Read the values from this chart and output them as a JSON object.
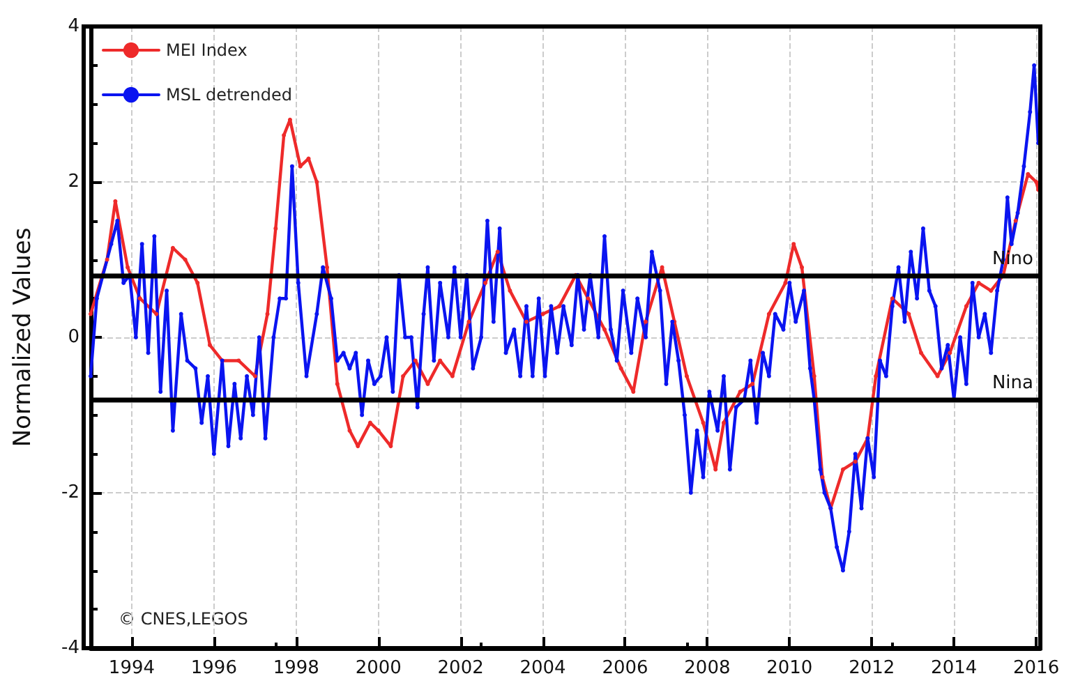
{
  "chart_data": {
    "type": "line",
    "ylabel": "Normalized Values",
    "xlim": [
      1993,
      2016.1
    ],
    "xticks": [
      1994,
      1996,
      1998,
      2000,
      2002,
      2004,
      2006,
      2008,
      2010,
      2012,
      2014,
      2016
    ],
    "ylim": [
      -4,
      4
    ],
    "yticks": [
      -4,
      -2,
      0,
      2,
      4
    ],
    "grid": true,
    "legend": "top left",
    "marker": "circle",
    "line_style": "solid",
    "annotations": [
      "© CNES,LEGOS"
    ],
    "ref_lines": [
      {
        "axis": "y",
        "value": 0.8,
        "label": "Nino",
        "color": "#000000"
      },
      {
        "axis": "y",
        "value": -0.8,
        "label": "Nina",
        "color": "#000000"
      }
    ],
    "series": [
      {
        "name": "MEI Index",
        "color": "#ee2a2a",
        "x": [
          1993,
          1993.4,
          1993.6,
          1993.9,
          1994.2,
          1994.6,
          1995,
          1995.3,
          1995.6,
          1995.9,
          1996.2,
          1996.6,
          1997,
          1997.3,
          1997.5,
          1997.7,
          1997.85,
          1998.1,
          1998.3,
          1998.5,
          1998.75,
          1999,
          1999.3,
          1999.5,
          1999.8,
          2000,
          2000.3,
          2000.6,
          2000.9,
          2001.2,
          2001.5,
          2001.8,
          2002.2,
          2002.6,
          2002.9,
          2003.2,
          2003.6,
          2004,
          2004.4,
          2004.8,
          2005.1,
          2005.5,
          2005.9,
          2006.2,
          2006.5,
          2006.9,
          2007.2,
          2007.5,
          2007.9,
          2008.2,
          2008.4,
          2008.8,
          2009.1,
          2009.5,
          2009.9,
          2010.1,
          2010.3,
          2010.6,
          2010.8,
          2011,
          2011.3,
          2011.6,
          2011.9,
          2012.1,
          2012.5,
          2012.9,
          2013.2,
          2013.6,
          2013.9,
          2014.3,
          2014.6,
          2014.9,
          2015.2,
          2015.5,
          2015.8,
          2016,
          2016.05
        ],
        "values": [
          0.3,
          1,
          1.75,
          0.9,
          0.5,
          0.3,
          1.15,
          1,
          0.7,
          -0.1,
          -0.3,
          -0.3,
          -0.5,
          0.3,
          1.4,
          2.6,
          2.8,
          2.2,
          2.3,
          2,
          0.9,
          -0.6,
          -1.2,
          -1.4,
          -1.1,
          -1.2,
          -1.4,
          -0.5,
          -0.3,
          -0.6,
          -0.3,
          -0.5,
          0.2,
          0.7,
          1.1,
          0.6,
          0.2,
          0.3,
          0.4,
          0.8,
          0.5,
          0.1,
          -0.4,
          -0.7,
          0.2,
          0.9,
          0.2,
          -0.5,
          -1.1,
          -1.7,
          -1.1,
          -0.7,
          -0.6,
          0.3,
          0.7,
          1.2,
          0.9,
          -0.5,
          -1.8,
          -2.2,
          -1.7,
          -1.6,
          -1.3,
          -0.5,
          0.5,
          0.3,
          -0.2,
          -0.5,
          -0.2,
          0.4,
          0.7,
          0.6,
          0.8,
          1.5,
          2.1,
          2,
          1.9
        ]
      },
      {
        "name": "MSL detrended",
        "color": "#0a14f0",
        "x": [
          1993,
          1993.15,
          1993.3,
          1993.5,
          1993.65,
          1993.8,
          1993.95,
          1994.1,
          1994.25,
          1994.4,
          1994.55,
          1994.7,
          1994.85,
          1995,
          1995.2,
          1995.35,
          1995.55,
          1995.7,
          1995.85,
          1996,
          1996.2,
          1996.35,
          1996.5,
          1996.65,
          1996.8,
          1996.95,
          1997.1,
          1997.25,
          1997.45,
          1997.6,
          1997.75,
          1997.9,
          1998.05,
          1998.25,
          1998.5,
          1998.65,
          1998.85,
          1999,
          1999.15,
          1999.3,
          1999.45,
          1999.6,
          1999.75,
          1999.9,
          2000.05,
          2000.2,
          2000.35,
          2000.5,
          2000.65,
          2000.8,
          2000.95,
          2001.1,
          2001.2,
          2001.35,
          2001.5,
          2001.7,
          2001.85,
          2002,
          2002.15,
          2002.3,
          2002.5,
          2002.65,
          2002.8,
          2002.95,
          2003.1,
          2003.3,
          2003.45,
          2003.6,
          2003.75,
          2003.9,
          2004.05,
          2004.2,
          2004.35,
          2004.5,
          2004.7,
          2004.85,
          2005,
          2005.15,
          2005.35,
          2005.5,
          2005.65,
          2005.8,
          2005.95,
          2006.15,
          2006.3,
          2006.5,
          2006.65,
          2006.85,
          2007,
          2007.15,
          2007.3,
          2007.45,
          2007.6,
          2007.75,
          2007.9,
          2008.05,
          2008.25,
          2008.4,
          2008.55,
          2008.7,
          2008.9,
          2009.05,
          2009.2,
          2009.35,
          2009.5,
          2009.65,
          2009.85,
          2010,
          2010.15,
          2010.35,
          2010.5,
          2010.6,
          2010.75,
          2010.85,
          2011,
          2011.15,
          2011.3,
          2011.45,
          2011.6,
          2011.75,
          2011.9,
          2012.05,
          2012.2,
          2012.35,
          2012.5,
          2012.65,
          2012.8,
          2012.95,
          2013.1,
          2013.25,
          2013.4,
          2013.55,
          2013.7,
          2013.85,
          2014,
          2014.15,
          2014.3,
          2014.45,
          2014.6,
          2014.75,
          2014.9,
          2015.05,
          2015.2,
          2015.3,
          2015.4,
          2015.55,
          2015.7,
          2015.85,
          2015.95,
          2016.05
        ],
        "values": [
          -0.5,
          0.5,
          0.8,
          1.2,
          1.5,
          0.7,
          0.8,
          0,
          1.2,
          -0.2,
          1.3,
          -0.7,
          0.6,
          -1.2,
          0.3,
          -0.3,
          -0.4,
          -1.1,
          -0.5,
          -1.5,
          -0.3,
          -1.4,
          -0.6,
          -1.3,
          -0.5,
          -1,
          0,
          -1.3,
          0,
          0.5,
          0.5,
          2.2,
          0.7,
          -0.5,
          0.3,
          0.9,
          0.5,
          -0.3,
          -0.2,
          -0.4,
          -0.2,
          -1,
          -0.3,
          -0.6,
          -0.5,
          0,
          -0.7,
          0.8,
          0,
          0,
          -0.9,
          0.3,
          0.9,
          -0.3,
          0.7,
          0,
          0.9,
          0,
          0.8,
          -0.4,
          0,
          1.5,
          0.2,
          1.4,
          -0.2,
          0.1,
          -0.5,
          0.4,
          -0.5,
          0.5,
          -0.5,
          0.4,
          -0.2,
          0.4,
          -0.1,
          0.8,
          0.1,
          0.8,
          0,
          1.3,
          0.1,
          -0.3,
          0.6,
          -0.2,
          0.5,
          0,
          1.1,
          0.6,
          -0.6,
          0.2,
          -0.3,
          -1,
          -2,
          -1.2,
          -1.8,
          -0.7,
          -1.2,
          -0.5,
          -1.7,
          -0.9,
          -0.8,
          -0.3,
          -1.1,
          -0.2,
          -0.5,
          0.3,
          0.1,
          0.7,
          0.2,
          0.6,
          -0.4,
          -0.8,
          -1.7,
          -2,
          -2.2,
          -2.7,
          -3,
          -2.5,
          -1.5,
          -2.2,
          -1.3,
          -1.8,
          -0.3,
          -0.5,
          0.4,
          0.9,
          0.2,
          1.1,
          0.5,
          1.4,
          0.6,
          0.4,
          -0.4,
          -0.1,
          -0.8,
          0,
          -0.6,
          0.7,
          0,
          0.3,
          -0.2,
          0.6,
          1,
          1.8,
          1.2,
          1.6,
          2.2,
          2.9,
          3.5,
          2.5
        ]
      }
    ]
  }
}
